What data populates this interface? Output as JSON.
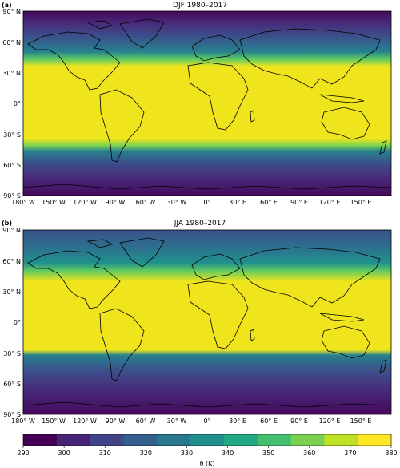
{
  "panels": [
    {
      "letter": "(a)",
      "title": "DJF 1980–2017"
    },
    {
      "letter": "(b)",
      "title": "JJA 1980–2017"
    }
  ],
  "lat_ticks": [
    "90° N",
    "60° N",
    "30° N",
    "0°",
    "30° S",
    "60° S",
    "90° S"
  ],
  "lon_ticks": [
    "180° W",
    "150° W",
    "120° W",
    "90° W",
    "60° W",
    "30° W",
    "0°",
    "30° E",
    "60° E",
    "90° E",
    "120° E",
    "150° E"
  ],
  "colorbar": {
    "ticks": [
      "290",
      "300",
      "310",
      "320",
      "330",
      "340",
      "350",
      "360",
      "370",
      "380"
    ],
    "label": "θ (K)",
    "colors": [
      "#440154",
      "#482475",
      "#414487",
      "#355f8d",
      "#2a788e",
      "#21918c",
      "#22a884",
      "#44bf70",
      "#7ad151",
      "#bddf26",
      "#fde725"
    ]
  }
}
